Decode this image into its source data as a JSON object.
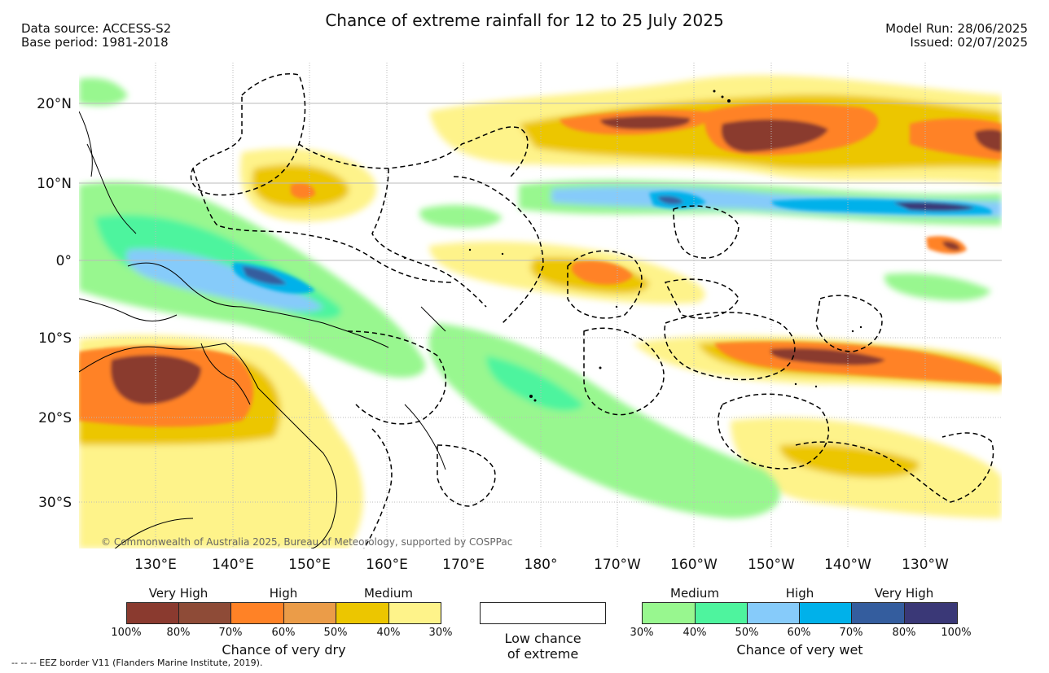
{
  "header": {
    "title": "Chance of extreme rainfall for 12 to 25 July 2025",
    "data_source": "Data source: ACCESS-S2",
    "base_period": "Base period: 1981-2018",
    "model_run": "Model Run: 28/06/2025",
    "issued": "Issued: 02/07/2025"
  },
  "map": {
    "lat_labels": [
      "20°N",
      "10°N",
      "0°",
      "10°S",
      "20°S",
      "30°S"
    ],
    "lon_labels": [
      "130°E",
      "140°E",
      "150°E",
      "160°E",
      "170°E",
      "180°",
      "170°W",
      "160°W",
      "150°W",
      "140°W",
      "130°W"
    ],
    "copyright": "© Commonwealth of Australia 2025, Bureau of Meteorology, supported by COSPPac"
  },
  "legend_dry": {
    "headers": [
      "Very High",
      "High",
      "Medium"
    ],
    "colors": [
      "#8a3a2f",
      "#8e4b37",
      "#ff8226",
      "#eb9c48",
      "#ecc600",
      "#fef38a"
    ],
    "ticks": [
      "100%",
      "80%",
      "70%",
      "60%",
      "50%",
      "40%",
      "30%"
    ],
    "label": "Chance of very dry"
  },
  "legend_low": {
    "line1": "Low chance",
    "line2": "of extreme"
  },
  "legend_wet": {
    "headers": [
      "Medium",
      "High",
      "Very High"
    ],
    "colors": [
      "#98f78f",
      "#4ef49e",
      "#86cbfa",
      "#00b1ea",
      "#345d9e",
      "#3a3877"
    ],
    "ticks": [
      "30%",
      "40%",
      "50%",
      "60%",
      "70%",
      "80%",
      "100%"
    ],
    "label": "Chance of very wet"
  },
  "footnote": "--  --  -- EEZ border V11 (Flanders Marine Institute, 2019)."
}
